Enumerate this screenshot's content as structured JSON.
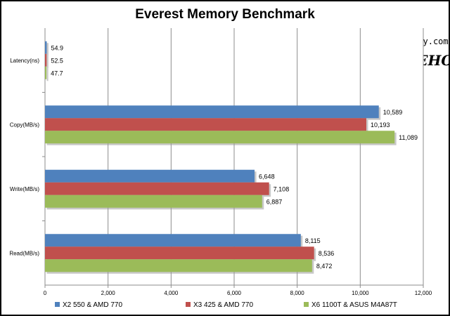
{
  "watermark": {
    "url": "http://daehoi.tistory.com",
    "text": "PHOTO BY DAEHOI"
  },
  "chart_data": {
    "type": "bar",
    "orientation": "horizontal",
    "title": "Everest Memory Benchmark",
    "categories": [
      "Latency(ns)",
      "Copy(MB/s)",
      "Write(MB/s)",
      "Read(MB/s)"
    ],
    "series": [
      {
        "name": "X2 550 & AMD 770",
        "color": "#4f81bd",
        "values": [
          54.9,
          10589,
          6648,
          8115
        ],
        "labels": [
          "54.9",
          "10,589",
          "6,648",
          "8,115"
        ]
      },
      {
        "name": "X3 425 & AMD 770",
        "color": "#c0504d",
        "values": [
          52.5,
          10193,
          7108,
          8536
        ],
        "labels": [
          "52.5",
          "10,193",
          "7,108",
          "8,536"
        ]
      },
      {
        "name": "X6 1100T & ASUS M4A87T",
        "color": "#9bbb59",
        "values": [
          47.7,
          11089,
          6887,
          8472
        ],
        "labels": [
          "47.7",
          "11,089",
          "6,887",
          "8,472"
        ]
      }
    ],
    "xlim": [
      0,
      12000
    ],
    "ticks": [
      0,
      2000,
      4000,
      6000,
      8000,
      10000,
      12000
    ],
    "tick_labels": [
      "0",
      "2,000",
      "4,000",
      "6,000",
      "8,000",
      "10,000",
      "12,000"
    ],
    "grid": true,
    "legend_position": "bottom"
  }
}
